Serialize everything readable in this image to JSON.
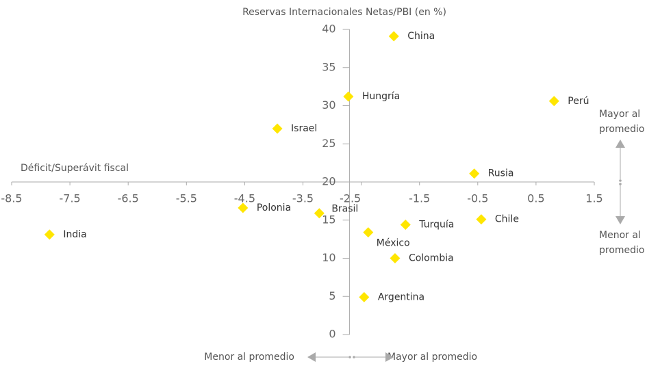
{
  "chart_data": {
    "type": "scatter",
    "title": "Reservas Internacionales Netas/PBI (en %)",
    "x_label": "Déficit/Superávit fiscal",
    "labels": [
      "China",
      "Hungría",
      "Perú",
      "Israel",
      "Rusia",
      "Polonia",
      "Brasil",
      "Turquía",
      "Chile",
      "India",
      "México",
      "Colombia",
      "Argentina"
    ],
    "x": [
      -1.94,
      -2.72,
      0.81,
      -3.94,
      -0.56,
      -4.53,
      -3.22,
      -1.74,
      -0.44,
      -7.85,
      -2.38,
      -1.92,
      -2.45
    ],
    "values": [
      39.1,
      31.2,
      30.6,
      27.0,
      21.1,
      16.6,
      15.9,
      14.4,
      15.1,
      13.1,
      13.4,
      10.0,
      4.9
    ],
    "color": "#ffe600",
    "xlim": [
      -8.5,
      1.5
    ],
    "xticks": [
      -8.5,
      -7.5,
      -6.5,
      -5.5,
      -4.5,
      -3.5,
      -2.5,
      -1.5,
      -0.5,
      0.5,
      1.5
    ],
    "ylim": [
      0,
      40
    ],
    "yticks": [
      0,
      5,
      10,
      15,
      20,
      25,
      30,
      35,
      40
    ],
    "x_axis_at_y": 20,
    "y_axis_at_x": -2.7,
    "annotations": {
      "right_top": [
        "Mayor al",
        "promedio"
      ],
      "right_bottom": [
        "Menor al",
        "promedio"
      ],
      "bottom_left": "Menor al promedio",
      "bottom_right": "Mayor al promedio"
    }
  }
}
